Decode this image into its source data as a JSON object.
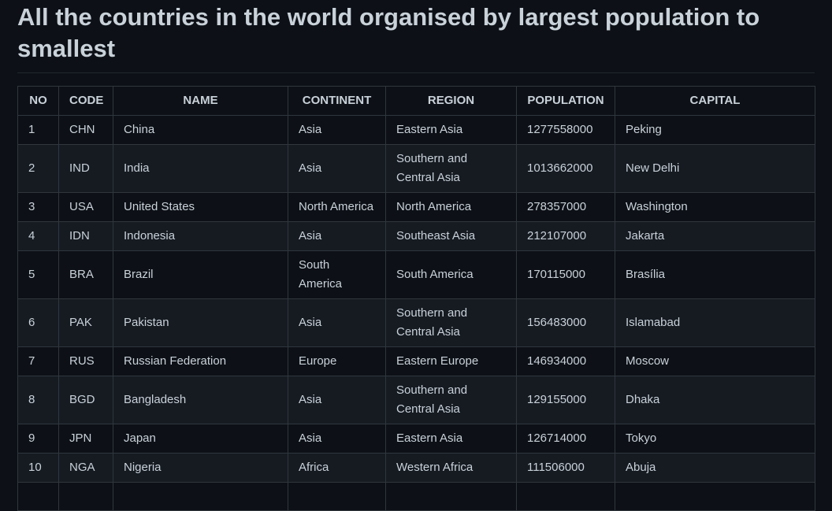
{
  "heading": "All the countries in the world organised by largest population to smallest",
  "columns": {
    "no": "NO",
    "code": "CODE",
    "name": "NAME",
    "continent": "CONTINENT",
    "region": "REGION",
    "population": "POPULATION",
    "capital": "CAPITAL"
  },
  "rows": [
    {
      "no": "1",
      "code": "CHN",
      "name": "China",
      "continent": "Asia",
      "region": "Eastern Asia",
      "population": "1277558000",
      "capital": "Peking"
    },
    {
      "no": "2",
      "code": "IND",
      "name": "India",
      "continent": "Asia",
      "region": "Southern and Central Asia",
      "population": "1013662000",
      "capital": "New Delhi"
    },
    {
      "no": "3",
      "code": "USA",
      "name": "United States",
      "continent": "North America",
      "region": "North America",
      "population": "278357000",
      "capital": "Washington"
    },
    {
      "no": "4",
      "code": "IDN",
      "name": "Indonesia",
      "continent": "Asia",
      "region": "Southeast Asia",
      "population": "212107000",
      "capital": "Jakarta"
    },
    {
      "no": "5",
      "code": "BRA",
      "name": "Brazil",
      "continent": "South America",
      "region": "South America",
      "population": "170115000",
      "capital": "Brasília"
    },
    {
      "no": "6",
      "code": "PAK",
      "name": "Pakistan",
      "continent": "Asia",
      "region": "Southern and Central Asia",
      "population": "156483000",
      "capital": "Islamabad"
    },
    {
      "no": "7",
      "code": "RUS",
      "name": "Russian Federation",
      "continent": "Europe",
      "region": "Eastern Europe",
      "population": "146934000",
      "capital": "Moscow"
    },
    {
      "no": "8",
      "code": "BGD",
      "name": "Bangladesh",
      "continent": "Asia",
      "region": "Southern and Central Asia",
      "population": "129155000",
      "capital": "Dhaka"
    },
    {
      "no": "9",
      "code": "JPN",
      "name": "Japan",
      "continent": "Asia",
      "region": "Eastern Asia",
      "population": "126714000",
      "capital": "Tokyo"
    },
    {
      "no": "10",
      "code": "NGA",
      "name": "Nigeria",
      "continent": "Africa",
      "region": "Western Africa",
      "population": "111506000",
      "capital": "Abuja"
    },
    {
      "no": "",
      "code": "",
      "name": "",
      "continent": "",
      "region": "",
      "population": "",
      "capital": ""
    }
  ]
}
